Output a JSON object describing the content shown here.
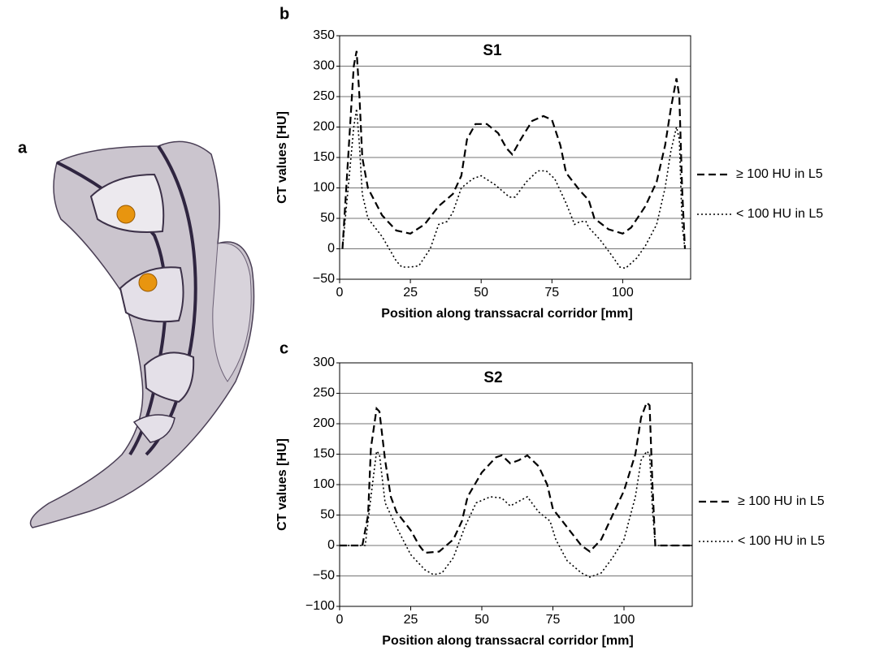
{
  "panel_labels": [
    "a",
    "b",
    "c"
  ],
  "chart_data": [
    {
      "type": "line",
      "title": "S1",
      "xlabel": "Position along transsacral corridor [mm]",
      "ylabel": "CT values [HU]",
      "xlim": [
        0,
        124
      ],
      "xticks": [
        0,
        25,
        50,
        75,
        100
      ],
      "ylim": [
        -50,
        350
      ],
      "yticks": [
        {
          "value": -50,
          "label": "−50"
        },
        0,
        50,
        100,
        150,
        200,
        250,
        300,
        350
      ],
      "grid": true,
      "legend": "right",
      "series": [
        {
          "name": "≥ 100 HU in L5",
          "color": "#000000",
          "line_style": "dashed",
          "x": [
            1,
            3,
            5,
            6,
            7,
            8,
            10,
            15,
            20,
            25,
            30,
            35,
            40,
            43,
            45,
            48,
            52,
            56,
            59,
            61,
            64,
            68,
            72,
            75,
            78,
            80,
            85,
            88,
            90,
            95,
            100,
            103,
            108,
            112,
            115,
            117,
            119,
            120,
            121,
            122
          ],
          "values": [
            0,
            150,
            300,
            325,
            250,
            150,
            100,
            55,
            30,
            25,
            40,
            70,
            90,
            120,
            180,
            205,
            205,
            190,
            165,
            155,
            180,
            210,
            218,
            212,
            170,
            125,
            95,
            80,
            50,
            32,
            25,
            35,
            70,
            110,
            170,
            230,
            280,
            250,
            100,
            0
          ]
        },
        {
          "name": "< 100 HU in L5",
          "color": "#000000",
          "line_style": "dotted",
          "x": [
            1,
            3,
            5,
            6,
            7,
            8,
            10,
            15,
            20,
            22,
            25,
            28,
            32,
            35,
            38,
            40,
            43,
            47,
            50,
            55,
            60,
            62,
            66,
            70,
            73,
            76,
            80,
            83,
            85,
            87,
            88,
            92,
            96,
            99,
            101,
            105,
            108,
            112,
            115,
            117,
            119,
            120,
            121,
            122
          ],
          "values": [
            0,
            100,
            200,
            230,
            170,
            90,
            50,
            20,
            -20,
            -30,
            -30,
            -28,
            0,
            40,
            45,
            60,
            100,
            115,
            120,
            105,
            85,
            85,
            110,
            128,
            128,
            115,
            75,
            40,
            45,
            45,
            35,
            15,
            -10,
            -30,
            -32,
            -15,
            5,
            40,
            100,
            160,
            200,
            180,
            40,
            0
          ]
        }
      ]
    },
    {
      "type": "line",
      "title": "S2",
      "xlabel": "Position along transsacral corridor [mm]",
      "ylabel": "CT values [HU]",
      "xlim": [
        0,
        124
      ],
      "xticks": [
        0,
        25,
        50,
        75,
        100
      ],
      "ylim": [
        -100,
        300
      ],
      "yticks": [
        {
          "value": -100,
          "label": "−100"
        },
        {
          "value": -50,
          "label": "−50"
        },
        0,
        50,
        100,
        150,
        200,
        250,
        300
      ],
      "grid": true,
      "legend": "right",
      "series": [
        {
          "name": "≥ 100 HU in L5",
          "color": "#000000",
          "line_style": "dashed",
          "x": [
            0,
            8,
            10,
            11,
            13,
            14,
            16,
            18,
            20,
            25,
            28,
            30,
            35,
            40,
            43,
            45,
            50,
            55,
            57,
            60,
            63,
            66,
            70,
            73,
            75,
            80,
            85,
            88,
            92,
            96,
            100,
            104,
            106,
            108,
            109,
            110,
            111,
            124
          ],
          "values": [
            0,
            0,
            50,
            160,
            225,
            220,
            140,
            80,
            55,
            25,
            0,
            -12,
            -10,
            10,
            40,
            80,
            120,
            145,
            148,
            135,
            140,
            148,
            130,
            100,
            60,
            30,
            0,
            -10,
            10,
            50,
            90,
            150,
            210,
            235,
            230,
            100,
            0,
            0
          ]
        },
        {
          "name": "< 100 HU in L5",
          "color": "#000000",
          "line_style": "dotted",
          "x": [
            0,
            9,
            11,
            13,
            14,
            16,
            20,
            25,
            30,
            33,
            36,
            40,
            44,
            48,
            53,
            57,
            60,
            62,
            66,
            70,
            74,
            76,
            80,
            85,
            88,
            92,
            96,
            100,
            104,
            106,
            108,
            109,
            110,
            111,
            124
          ],
          "values": [
            0,
            0,
            80,
            155,
            150,
            70,
            30,
            -15,
            -40,
            -48,
            -45,
            -20,
            30,
            70,
            80,
            78,
            65,
            70,
            80,
            55,
            40,
            10,
            -25,
            -45,
            -52,
            -45,
            -20,
            10,
            80,
            140,
            155,
            150,
            60,
            0,
            0
          ]
        }
      ]
    }
  ]
}
